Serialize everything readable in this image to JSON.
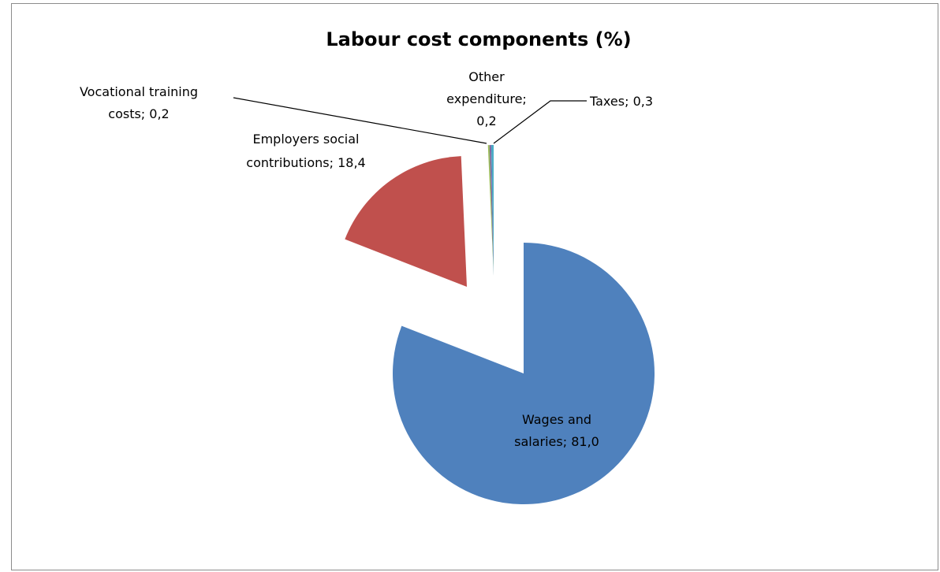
{
  "chart_data": {
    "type": "pie",
    "title": "Labour cost components (%)",
    "slices": [
      {
        "name": "Wages and salaries",
        "value": 81.0,
        "color": "#4F81BD",
        "label_lines": [
          "Wages and",
          "salaries; 81,0"
        ]
      },
      {
        "name": "Employers social contributions",
        "value": 18.4,
        "color": "#C0504D",
        "label_lines": [
          "Employers social",
          "contributions; 18,4"
        ]
      },
      {
        "name": "Vocational training costs",
        "value": 0.2,
        "color": "#9BBB59",
        "label_lines": [
          "Vocational training",
          "costs; 0,2"
        ]
      },
      {
        "name": "Other expenditure",
        "value": 0.2,
        "color": "#8064A2",
        "label_lines": [
          "Other",
          "expenditure;",
          "0,2"
        ]
      },
      {
        "name": "Taxes",
        "value": 0.3,
        "color": "#4BACC6",
        "label_lines": [
          "Taxes; 0,3"
        ]
      }
    ],
    "exploded": true,
    "legend": "none"
  }
}
